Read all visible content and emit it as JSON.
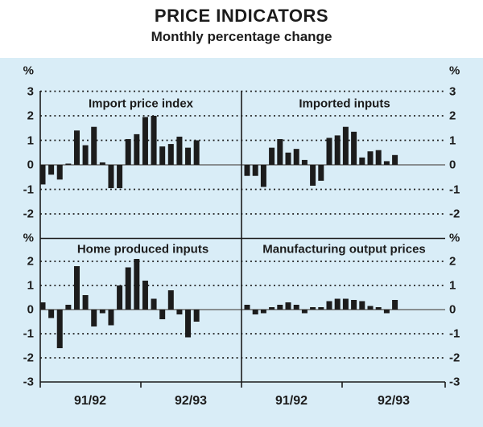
{
  "header": {
    "title": "PRICE INDICATORS",
    "subtitle": "Monthly percentage change"
  },
  "colors": {
    "page_background": "#ffffff",
    "chart_background": "#d9edf7",
    "bar": "#1c1c1c",
    "grid_dashed": "#1c1c1c",
    "zero_line": "#6e6e6e",
    "axis": "#1c1c1c",
    "text": "#1c1c1c"
  },
  "y_axis": {
    "top": {
      "unit": "%",
      "ticks": [
        "3",
        "2",
        "1",
        "0",
        "-1",
        "-2"
      ]
    },
    "bottom": {
      "unit": "%",
      "ticks": [
        "2",
        "1",
        "0",
        "-1",
        "-2",
        "-3"
      ]
    }
  },
  "x_axis": {
    "labels": [
      "91/92",
      "92/93",
      "91/92",
      "92/93"
    ]
  },
  "chart_data": [
    {
      "type": "bar",
      "title": "Import price index",
      "position": "top-left",
      "unit": "%",
      "x_categories": [
        "91/92",
        "92/93"
      ],
      "yticks": [
        3,
        2,
        1,
        0,
        -1,
        -2
      ],
      "ylim": [
        -2.7,
        3.3
      ],
      "grid": "dashed-horizontal",
      "values": [
        -0.8,
        -0.4,
        -0.6,
        0.05,
        1.4,
        0.8,
        1.55,
        0.1,
        -0.95,
        -0.95,
        1.05,
        1.25,
        1.95,
        2.0,
        0.75,
        0.85,
        1.15,
        0.7,
        1.0
      ]
    },
    {
      "type": "bar",
      "title": "Imported inputs",
      "position": "top-right",
      "unit": "%",
      "x_categories": [
        "91/92",
        "92/93"
      ],
      "yticks": [
        3,
        2,
        1,
        0,
        -1,
        -2
      ],
      "ylim": [
        -2.7,
        3.3
      ],
      "grid": "dashed-horizontal",
      "values": [
        -0.45,
        -0.45,
        -0.9,
        0.7,
        1.05,
        0.5,
        0.65,
        0.2,
        -0.85,
        -0.65,
        1.1,
        1.2,
        1.55,
        1.35,
        0.3,
        0.55,
        0.6,
        0.15,
        0.4
      ]
    },
    {
      "type": "bar",
      "title": "Home produced inputs",
      "position": "bottom-left",
      "unit": "%",
      "x_categories": [
        "91/92",
        "92/93"
      ],
      "yticks": [
        2,
        1,
        0,
        -1,
        -2,
        -3
      ],
      "ylim": [
        -3.3,
        2.7
      ],
      "grid": "dashed-horizontal",
      "values": [
        0.3,
        -0.35,
        -1.6,
        0.2,
        1.8,
        0.6,
        -0.7,
        -0.15,
        -0.65,
        1.0,
        1.75,
        2.1,
        1.2,
        0.45,
        -0.4,
        0.8,
        -0.2,
        -1.15,
        -0.5
      ]
    },
    {
      "type": "bar",
      "title": "Manufacturing output prices",
      "position": "bottom-right",
      "unit": "%",
      "x_categories": [
        "91/92",
        "92/93"
      ],
      "yticks": [
        2,
        1,
        0,
        -1,
        -2,
        -3
      ],
      "ylim": [
        -3.3,
        2.7
      ],
      "grid": "dashed-horizontal",
      "values": [
        0.2,
        -0.2,
        -0.15,
        0.1,
        0.2,
        0.3,
        0.2,
        -0.15,
        0.1,
        0.1,
        0.35,
        0.45,
        0.45,
        0.4,
        0.35,
        0.15,
        0.1,
        -0.15,
        0.4
      ]
    }
  ]
}
